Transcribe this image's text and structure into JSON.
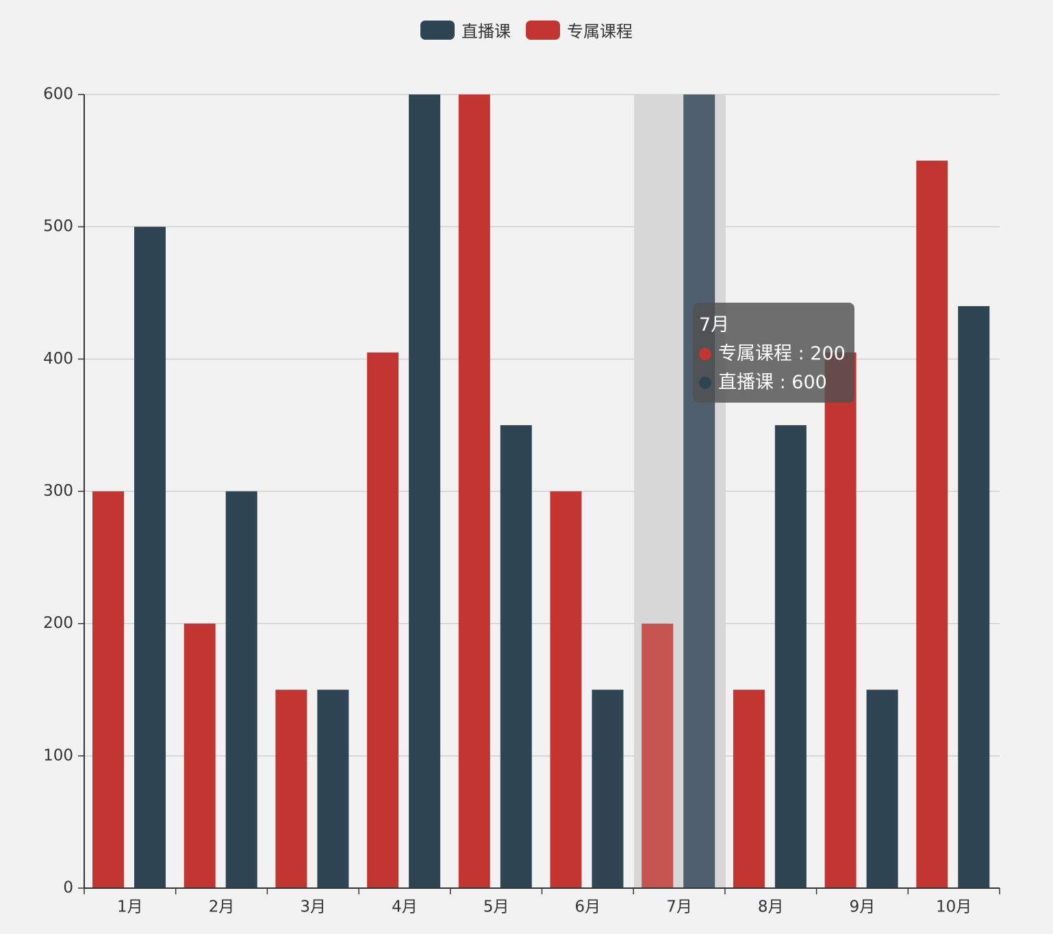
{
  "chart_data": {
    "type": "bar",
    "categories": [
      "1月",
      "2月",
      "3月",
      "4月",
      "5月",
      "6月",
      "7月",
      "8月",
      "9月",
      "10月"
    ],
    "series": [
      {
        "name": "专属课程",
        "color": "#c23531",
        "values": [
          300,
          200,
          150,
          405,
          600,
          300,
          200,
          150,
          405,
          550
        ]
      },
      {
        "name": "直播课",
        "color": "#2f4554",
        "values": [
          500,
          300,
          150,
          600,
          350,
          150,
          600,
          350,
          150,
          440
        ]
      }
    ],
    "ylim": [
      0,
      600
    ],
    "yticks": [
      "0",
      "100",
      "200",
      "300",
      "400",
      "500",
      "600"
    ],
    "grid": true,
    "legend": {
      "position": "top-center",
      "items": [
        {
          "name": "直播课",
          "color": "#2f4554"
        },
        {
          "name": "专属课程",
          "color": "#c23531"
        }
      ]
    },
    "highlighted_category": "7月",
    "tooltip": {
      "title": "7月",
      "rows": [
        {
          "label": "专属课程",
          "value": "200",
          "color": "#c23531"
        },
        {
          "label": "直播课",
          "value": "600",
          "color": "#2f4554"
        }
      ]
    }
  }
}
